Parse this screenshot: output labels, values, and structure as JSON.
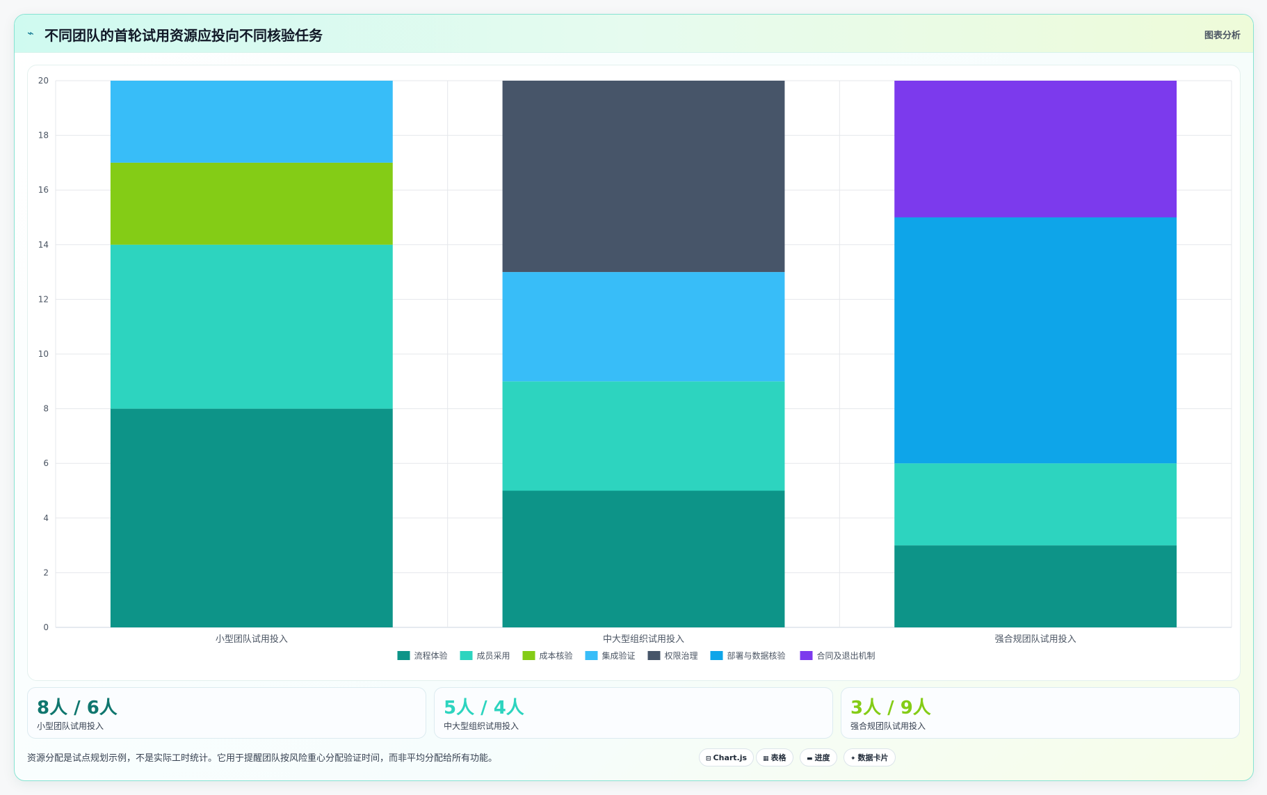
{
  "header": {
    "title": "不同团队的首轮试用资源应投向不同核验任务",
    "action_label": "图表分析",
    "icon": "trend-icon"
  },
  "chart_data": {
    "type": "bar",
    "stacked": true,
    "categories": [
      "小型团队试用投入",
      "中大型组织试用投入",
      "强合规团队试用投入"
    ],
    "ylim": [
      0,
      20
    ],
    "y_ticks": [
      0,
      2,
      4,
      6,
      8,
      10,
      12,
      14,
      16,
      18,
      20
    ],
    "grid": true,
    "legend_position": "bottom",
    "series": [
      {
        "name": "流程体验",
        "color": "#0d9488",
        "values": [
          8,
          5,
          3
        ]
      },
      {
        "name": "成员采用",
        "color": "#2dd4bf",
        "values": [
          6,
          4,
          3
        ]
      },
      {
        "name": "成本核验",
        "color": "#84cc16",
        "values": [
          3,
          0,
          0
        ]
      },
      {
        "name": "集成验证",
        "color": "#38bdf8",
        "values": [
          3,
          4,
          0
        ]
      },
      {
        "name": "权限治理",
        "color": "#475569",
        "values": [
          0,
          7,
          0
        ]
      },
      {
        "name": "部署与数据核验",
        "color": "#0ea5e9",
        "values": [
          0,
          0,
          9
        ]
      },
      {
        "name": "合同及退出机制",
        "color": "#7c3aed",
        "values": [
          0,
          0,
          5
        ]
      }
    ]
  },
  "stats": [
    {
      "value": "8人 / 6人",
      "label": "小型团队试用投入",
      "color": "#0f766e"
    },
    {
      "value": "5人 / 4人",
      "label": "中大型组织试用投入",
      "color": "#2dd4bf"
    },
    {
      "value": "3人 / 9人",
      "label": "强合规团队试用投入",
      "color": "#84cc16"
    }
  ],
  "footnote": "资源分配是试点规划示例，不是实际工时统计。它用于提醒团队按风险重心分配验证时间，而非平均分配给所有功能。",
  "chips": [
    {
      "icon": "⊟",
      "label": "Chart.js"
    },
    {
      "icon": "▦",
      "label": "表格"
    },
    {
      "icon": "▬",
      "label": "进度"
    },
    {
      "icon": "✦",
      "label": "数据卡片"
    }
  ]
}
